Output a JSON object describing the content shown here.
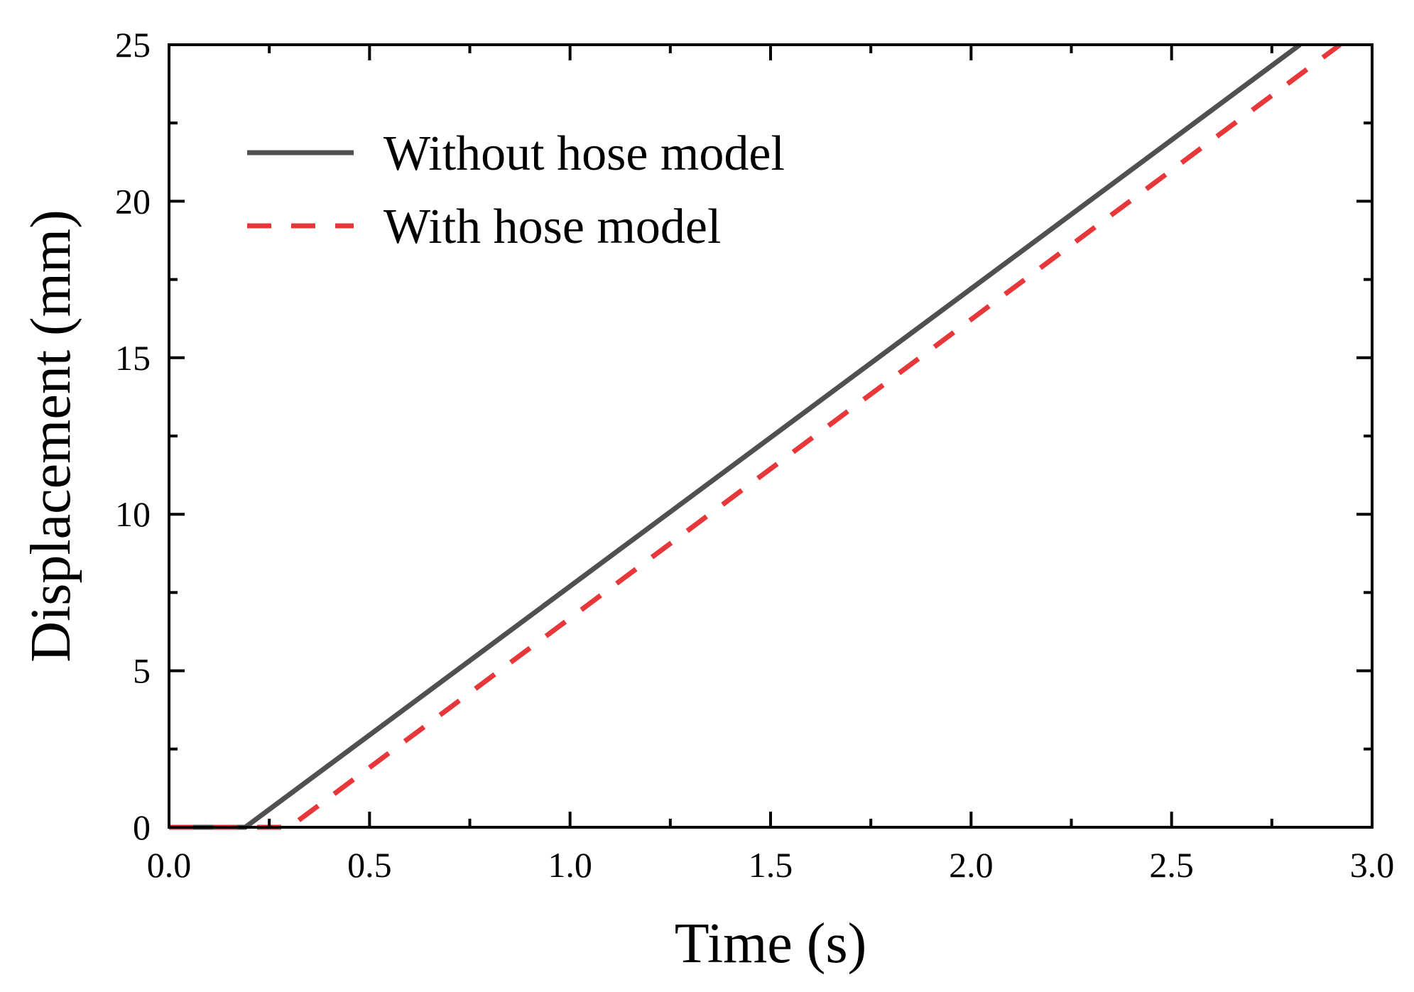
{
  "chart_data": {
    "type": "line",
    "title": "",
    "xlabel": "Time (s)",
    "ylabel": "Displacement (mm)",
    "xlim": [
      0.0,
      3.0
    ],
    "ylim": [
      0,
      25
    ],
    "x_ticks": [
      "0.0",
      "0.5",
      "1.0",
      "1.5",
      "2.0",
      "2.5",
      "3.0"
    ],
    "y_ticks": [
      "0",
      "5",
      "10",
      "15",
      "20",
      "25"
    ],
    "grid": false,
    "legend_position": "top-left",
    "series": [
      {
        "name": "Without hose model",
        "color": "#505050",
        "style": "solid",
        "x": [
          0.0,
          0.19,
          2.82
        ],
        "y": [
          0,
          0,
          25
        ]
      },
      {
        "name": "With hose model",
        "color": "#e8373a",
        "style": "dashed",
        "x": [
          0.0,
          0.3,
          2.92
        ],
        "y": [
          0,
          0,
          25
        ]
      }
    ]
  }
}
